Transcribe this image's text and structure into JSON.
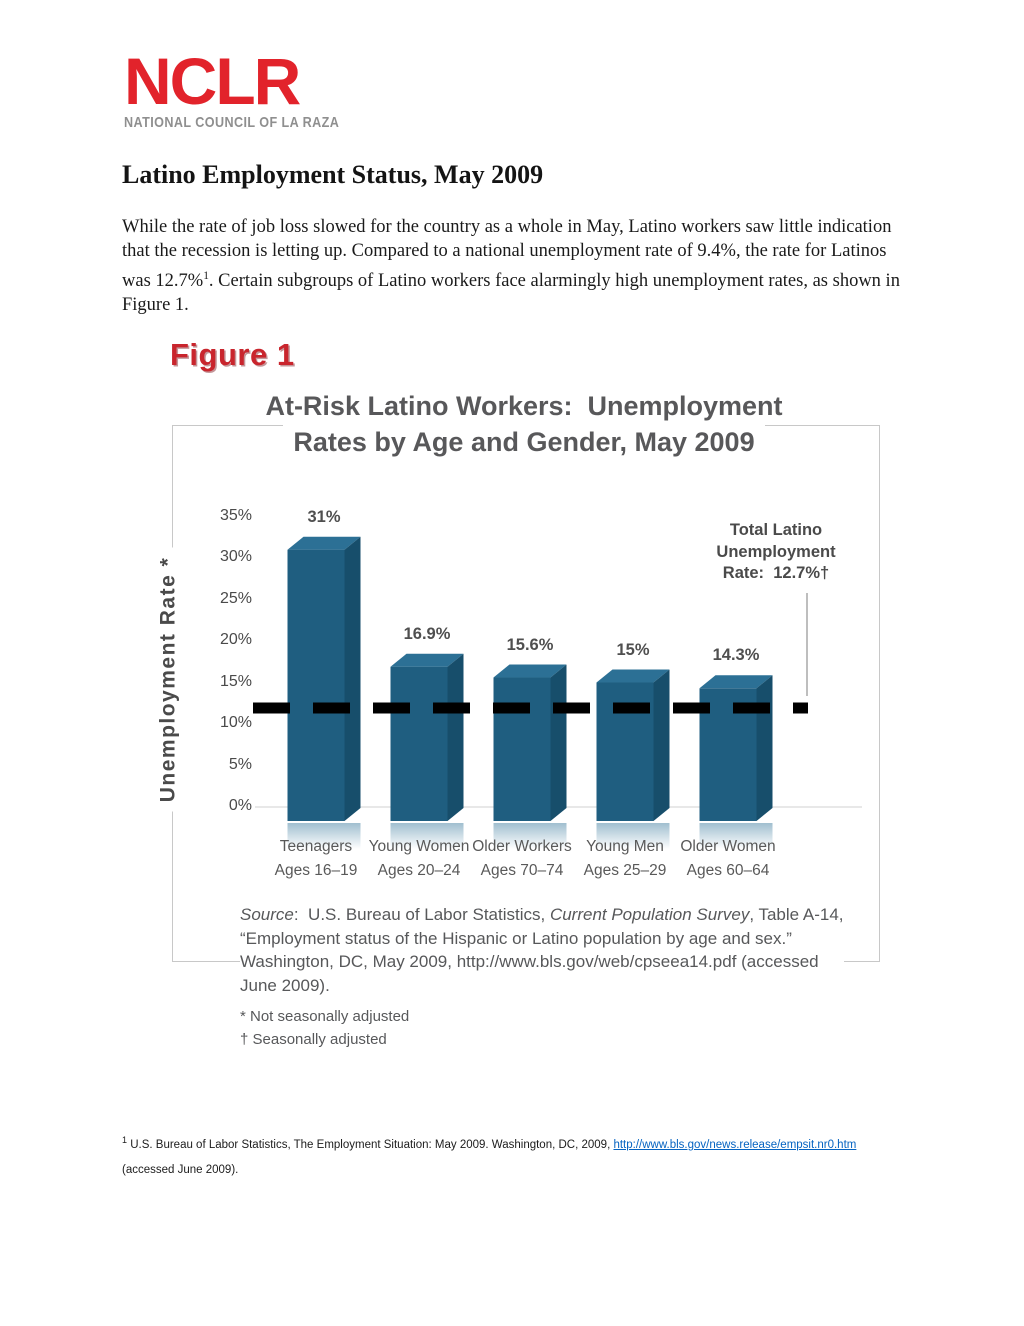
{
  "logo": {
    "acronym": "NCLR",
    "tagline": "NATIONAL COUNCIL OF LA RAZA"
  },
  "doc": {
    "title": "Latino Employment Status, May 2009",
    "intro_segments": [
      {
        "text": "While the rate of job loss slowed for the country as a whole in May, Latino workers saw little indication that the recession is letting up. Compared to a national unemployment rate of 9.4%, the rate for Latinos was 12.7%"
      },
      {
        "text": "1",
        "sup": true
      },
      {
        "text": ". Certain subgroups of Latino workers face alarmingly high unemployment rates, as shown in Figure 1."
      }
    ],
    "footnote": {
      "line1_segments": [
        {
          "text": "1",
          "sup": true
        },
        {
          "text": " U.S. Bureau of Labor Statistics, The Employment Situation: May 2009. Washington, DC, 2009, "
        },
        {
          "text": "http://www.bls.gov/news.release/empsit.nr0.htm",
          "link": true
        }
      ],
      "line2": "(accessed June 2009)."
    }
  },
  "figure": {
    "label": "Figure 1",
    "source_segments": [
      {
        "text": "Source",
        "italic": true
      },
      {
        "text": ":  U.S. Bureau of Labor Statistics, "
      },
      {
        "text": "Current Population Survey",
        "italic": true
      },
      {
        "text": ", Table A-14, “Employment status of the Hispanic or Latino population by age and sex.”  Washington, DC, May 2009, http://www.bls.gov/web/cpseea14.pdf (accessed June 2009)."
      }
    ],
    "notes": [
      "* Not seasonally adjusted",
      "† Seasonally adjusted"
    ]
  },
  "chart_data": {
    "type": "bar",
    "title": "At-Risk Latino Workers:  Unemployment Rates by Age and Gender, May 2009",
    "title_lines": [
      "At-Risk Latino Workers:  Unemployment",
      "Rates by Age and Gender, May 2009"
    ],
    "xlabel": "",
    "ylabel": "Unemployment Rate *",
    "ylim": [
      0,
      35
    ],
    "grid": false,
    "legend": false,
    "categories": [
      [
        "Teenagers",
        "Ages 16–19"
      ],
      [
        "Young Women",
        "Ages 20–24"
      ],
      [
        "Older Workers",
        "Ages 70–74"
      ],
      [
        "Young Men",
        "Ages 25–29"
      ],
      [
        "Older Women",
        "Ages 60–64"
      ]
    ],
    "values": [
      31,
      16.9,
      15.6,
      15,
      14.3
    ],
    "value_labels": [
      "31%",
      "16.9%",
      "15.6%",
      "15%",
      "14.3%"
    ],
    "yticks": [
      35,
      30,
      25,
      20,
      15,
      10,
      5,
      0
    ],
    "ytick_labels": [
      "35%",
      "30%",
      "25%",
      "20%",
      "15%",
      "10%",
      "5%",
      "0%"
    ],
    "reference_line": {
      "value": 12.7,
      "label_lines": [
        "Total Latino",
        "Unemployment",
        "Rate:  12.7%†"
      ]
    },
    "bar_color": "#1F5E80",
    "bar_side_color": "#174E6B",
    "bar_top_color": "#2C7095",
    "refline_color": "#000000",
    "baseline_color": "#DBDBDB"
  }
}
